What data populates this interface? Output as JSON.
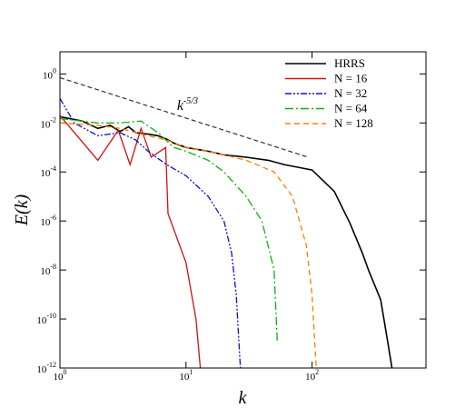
{
  "chart_data": {
    "type": "line",
    "xlabel": "k",
    "ylabel": "E(k)",
    "xscale": "log",
    "yscale": "log",
    "xlim": [
      1,
      800
    ],
    "ylim": [
      1e-12,
      8
    ],
    "xticks": [
      {
        "value": 1,
        "label": "10",
        "exponent": "0"
      },
      {
        "value": 10,
        "label": "10",
        "exponent": "1"
      },
      {
        "value": 100,
        "label": "10",
        "exponent": "2"
      }
    ],
    "yticks": [
      {
        "value": 1e-12,
        "label": "10",
        "exponent": "-12"
      },
      {
        "value": 1e-10,
        "label": "10",
        "exponent": "-10"
      },
      {
        "value": 1e-08,
        "label": "10",
        "exponent": "-8"
      },
      {
        "value": 1e-06,
        "label": "10",
        "exponent": "-6"
      },
      {
        "value": 0.0001,
        "label": "10",
        "exponent": "-4"
      },
      {
        "value": 0.01,
        "label": "10",
        "exponent": "-2"
      },
      {
        "value": 1,
        "label": "10",
        "exponent": "0"
      }
    ],
    "legend": "upper right",
    "series": [
      {
        "name": "HRRS",
        "color": "#000000",
        "linestyle": "solid",
        "x": [
          1,
          1.5,
          2,
          2.5,
          3,
          3.5,
          4,
          5,
          6,
          7,
          8,
          10,
          15,
          20,
          30,
          45,
          60,
          80,
          100,
          150,
          200,
          250,
          280,
          350,
          400,
          430
        ],
        "values": [
          0.018,
          0.012,
          0.006,
          0.008,
          0.0045,
          0.007,
          0.004,
          0.0035,
          0.003,
          0.0022,
          0.0015,
          0.001,
          0.0007,
          0.0005,
          0.0004,
          0.0003,
          0.0002,
          0.00015,
          0.00012,
          1.6e-05,
          8e-07,
          5e-08,
          1e-08,
          6e-10,
          1e-11,
          1e-12
        ]
      },
      {
        "name": "N = 16",
        "color": "#d01010",
        "linestyle": "solid",
        "x": [
          1,
          2,
          2.9,
          3.6,
          4.4,
          5.3,
          6.9,
          7.2,
          10,
          12,
          13
        ],
        "values": [
          0.02,
          0.0003,
          0.005,
          0.0002,
          0.006,
          0.0004,
          0.001,
          2e-06,
          2e-08,
          1e-10,
          1e-12
        ]
      },
      {
        "name": "N = 32",
        "color": "#1010d0",
        "linestyle": "dashdotdot",
        "x": [
          1,
          1.3,
          2,
          3,
          4,
          5,
          7,
          10,
          15,
          20,
          23,
          25,
          27
        ],
        "values": [
          0.1,
          0.01,
          0.003,
          0.004,
          0.002,
          0.0007,
          0.0002,
          7e-05,
          1e-05,
          1e-06,
          5e-08,
          1e-09,
          1e-12
        ]
      },
      {
        "name": "N = 64",
        "color": "#10b010",
        "linestyle": "dashdot",
        "x": [
          1,
          2,
          3,
          4.4,
          6,
          8,
          10,
          15,
          20,
          30,
          40,
          50,
          53
        ],
        "values": [
          0.015,
          0.01,
          0.01,
          0.012,
          0.004,
          0.001,
          0.0007,
          0.0003,
          0.0001,
          1e-05,
          1e-06,
          1e-08,
          1e-11
        ]
      },
      {
        "name": "N = 128",
        "color": "#ff8000",
        "linestyle": "dashed",
        "x": [
          1,
          2,
          3,
          5,
          7,
          10,
          15,
          20,
          30,
          50,
          70,
          90,
          100,
          105,
          108
        ],
        "values": [
          0.01,
          0.008,
          0.006,
          0.003,
          0.002,
          0.001,
          0.0007,
          0.0005,
          0.0003,
          0.0001,
          1e-05,
          1e-07,
          1e-09,
          1e-11,
          1e-12
        ]
      }
    ],
    "reference_line": {
      "color": "#333333",
      "x": [
        1,
        93
      ],
      "values": [
        0.7,
        0.0004
      ]
    },
    "annotation": {
      "text": "k",
      "exponent": "-5/3",
      "x": 10,
      "y": 0.02
    }
  }
}
